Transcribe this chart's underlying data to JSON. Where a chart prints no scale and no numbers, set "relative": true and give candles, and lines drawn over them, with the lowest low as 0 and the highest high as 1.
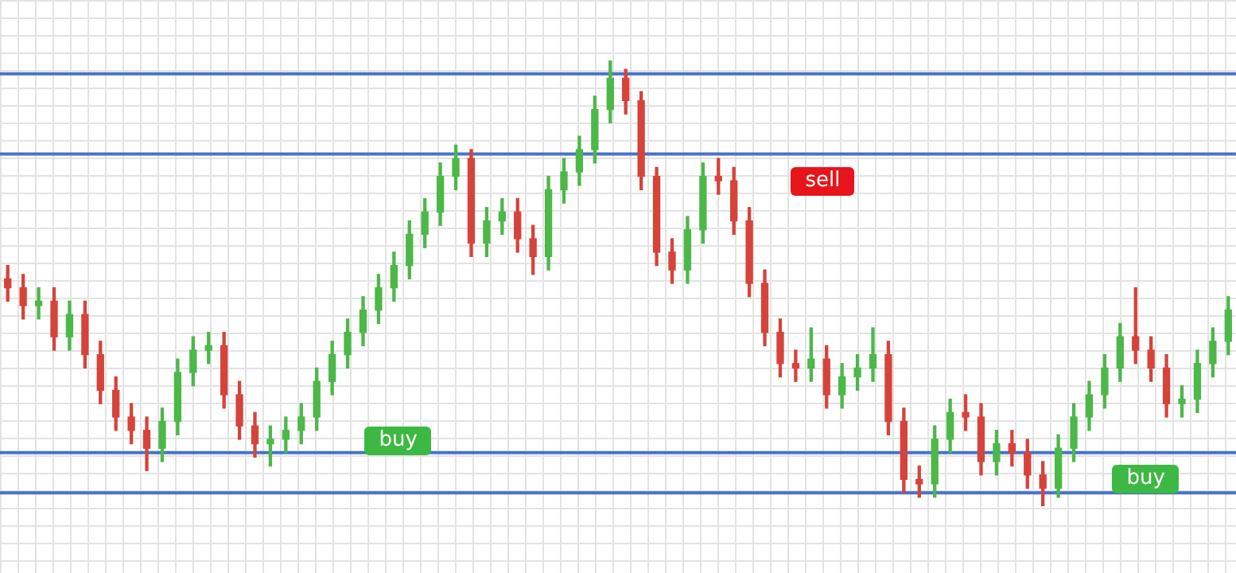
{
  "chart_data": {
    "type": "candlestick",
    "relative": true,
    "categories": [
      null,
      null,
      null,
      null,
      null,
      null,
      null,
      null,
      null,
      null,
      null,
      null,
      null,
      null,
      null,
      null,
      null,
      null,
      null,
      null,
      null,
      null,
      null,
      null,
      null,
      null,
      null,
      null,
      null,
      null,
      null,
      null,
      null,
      null,
      null,
      null,
      null,
      null,
      null,
      null,
      null,
      null,
      null,
      null,
      null,
      null,
      null,
      null,
      null,
      null,
      null,
      null,
      null,
      null,
      null,
      null,
      null,
      null,
      null,
      null,
      null,
      null,
      null,
      null,
      null,
      null,
      null,
      null,
      null,
      null,
      null,
      null,
      null,
      null,
      null,
      null,
      null,
      null,
      null,
      null
    ],
    "ohlc": [
      [
        0.51,
        0.54,
        0.46,
        0.49
      ],
      [
        0.49,
        0.52,
        0.42,
        0.45
      ],
      [
        0.45,
        0.49,
        0.42,
        0.46
      ],
      [
        0.46,
        0.49,
        0.35,
        0.38
      ],
      [
        0.38,
        0.46,
        0.35,
        0.43
      ],
      [
        0.43,
        0.46,
        0.31,
        0.34
      ],
      [
        0.34,
        0.37,
        0.23,
        0.26
      ],
      [
        0.26,
        0.29,
        0.17,
        0.2
      ],
      [
        0.2,
        0.23,
        0.14,
        0.17
      ],
      [
        0.17,
        0.2,
        0.08,
        0.13
      ],
      [
        0.13,
        0.22,
        0.1,
        0.19
      ],
      [
        0.19,
        0.33,
        0.16,
        0.3
      ],
      [
        0.3,
        0.38,
        0.27,
        0.35
      ],
      [
        0.35,
        0.39,
        0.32,
        0.36
      ],
      [
        0.36,
        0.39,
        0.22,
        0.25
      ],
      [
        0.25,
        0.28,
        0.15,
        0.18
      ],
      [
        0.18,
        0.21,
        0.11,
        0.14
      ],
      [
        0.14,
        0.18,
        0.09,
        0.15
      ],
      [
        0.15,
        0.2,
        0.12,
        0.17
      ],
      [
        0.17,
        0.23,
        0.14,
        0.2
      ],
      [
        0.2,
        0.31,
        0.17,
        0.28
      ],
      [
        0.28,
        0.37,
        0.25,
        0.34
      ],
      [
        0.34,
        0.42,
        0.31,
        0.39
      ],
      [
        0.39,
        0.47,
        0.36,
        0.44
      ],
      [
        0.44,
        0.52,
        0.41,
        0.49
      ],
      [
        0.49,
        0.57,
        0.46,
        0.54
      ],
      [
        0.54,
        0.64,
        0.51,
        0.61
      ],
      [
        0.61,
        0.69,
        0.58,
        0.66
      ],
      [
        0.66,
        0.77,
        0.63,
        0.74
      ],
      [
        0.74,
        0.81,
        0.71,
        0.78
      ],
      [
        0.78,
        0.8,
        0.56,
        0.59
      ],
      [
        0.59,
        0.67,
        0.56,
        0.64
      ],
      [
        0.64,
        0.69,
        0.61,
        0.66
      ],
      [
        0.66,
        0.69,
        0.57,
        0.6
      ],
      [
        0.6,
        0.63,
        0.52,
        0.56
      ],
      [
        0.56,
        0.74,
        0.53,
        0.71
      ],
      [
        0.71,
        0.78,
        0.68,
        0.75
      ],
      [
        0.75,
        0.83,
        0.72,
        0.8
      ],
      [
        0.8,
        0.92,
        0.77,
        0.89
      ],
      [
        0.89,
        1.0,
        0.86,
        0.96
      ],
      [
        0.96,
        0.98,
        0.88,
        0.91
      ],
      [
        0.91,
        0.93,
        0.71,
        0.74
      ],
      [
        0.74,
        0.76,
        0.54,
        0.57
      ],
      [
        0.57,
        0.6,
        0.5,
        0.53
      ],
      [
        0.53,
        0.65,
        0.5,
        0.62
      ],
      [
        0.62,
        0.77,
        0.59,
        0.74
      ],
      [
        0.74,
        0.78,
        0.7,
        0.73
      ],
      [
        0.73,
        0.76,
        0.61,
        0.64
      ],
      [
        0.64,
        0.67,
        0.47,
        0.5
      ],
      [
        0.5,
        0.53,
        0.36,
        0.39
      ],
      [
        0.39,
        0.42,
        0.29,
        0.32
      ],
      [
        0.32,
        0.35,
        0.28,
        0.31
      ],
      [
        0.31,
        0.4,
        0.28,
        0.33
      ],
      [
        0.33,
        0.36,
        0.22,
        0.25
      ],
      [
        0.25,
        0.32,
        0.22,
        0.29
      ],
      [
        0.29,
        0.34,
        0.26,
        0.31
      ],
      [
        0.31,
        0.4,
        0.28,
        0.34
      ],
      [
        0.34,
        0.37,
        0.16,
        0.19
      ],
      [
        0.19,
        0.22,
        0.03,
        0.06
      ],
      [
        0.06,
        0.09,
        0.02,
        0.05
      ],
      [
        0.05,
        0.18,
        0.02,
        0.15
      ],
      [
        0.15,
        0.24,
        0.12,
        0.21
      ],
      [
        0.21,
        0.25,
        0.17,
        0.2
      ],
      [
        0.2,
        0.23,
        0.07,
        0.1
      ],
      [
        0.1,
        0.17,
        0.07,
        0.14
      ],
      [
        0.14,
        0.17,
        0.09,
        0.12
      ],
      [
        0.12,
        0.15,
        0.04,
        0.07
      ],
      [
        0.07,
        0.1,
        0.0,
        0.04
      ],
      [
        0.04,
        0.16,
        0.02,
        0.13
      ],
      [
        0.13,
        0.23,
        0.1,
        0.2
      ],
      [
        0.2,
        0.28,
        0.17,
        0.25
      ],
      [
        0.25,
        0.34,
        0.22,
        0.31
      ],
      [
        0.31,
        0.41,
        0.28,
        0.38
      ],
      [
        0.38,
        0.49,
        0.32,
        0.35
      ],
      [
        0.35,
        0.38,
        0.28,
        0.31
      ],
      [
        0.31,
        0.34,
        0.2,
        0.23
      ],
      [
        0.23,
        0.27,
        0.2,
        0.24
      ],
      [
        0.24,
        0.35,
        0.21,
        0.32
      ],
      [
        0.32,
        0.4,
        0.29,
        0.37
      ],
      [
        0.37,
        0.47,
        0.34,
        0.44
      ]
    ],
    "ref_lines": [
      {
        "axis": "y",
        "value": 0.97,
        "color": "#4a72c8"
      },
      {
        "axis": "y",
        "value": 0.79,
        "color": "#4a72c8"
      },
      {
        "axis": "y",
        "value": 0.12,
        "color": "#4a72c8"
      },
      {
        "axis": "y",
        "value": 0.03,
        "color": "#4a72c8"
      }
    ],
    "annotations": [
      "sell",
      "buy",
      "buy"
    ]
  }
}
